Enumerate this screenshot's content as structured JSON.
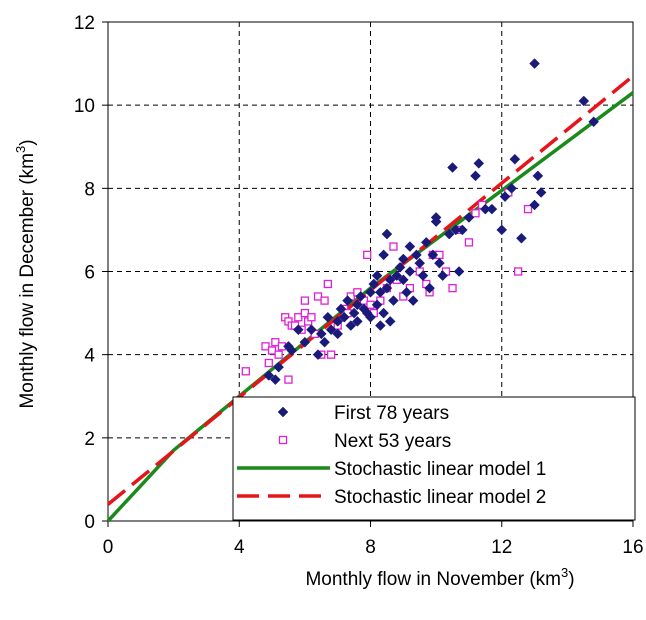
{
  "chart_data": {
    "type": "scatter",
    "xlabel": "Monthly flow in November (km",
    "xlabel_sup": "3",
    "xlabel_end": ")",
    "ylabel": "Monthly flow in December (km",
    "ylabel_sup": "3",
    "ylabel_end": ")",
    "xlim": [
      0,
      16
    ],
    "ylim": [
      0,
      12
    ],
    "xticks": [
      "0",
      "4",
      "8",
      "12",
      "16"
    ],
    "yticks": [
      "0",
      "2",
      "4",
      "6",
      "8",
      "10",
      "12"
    ],
    "grid": true,
    "legend_position": "bottom-right",
    "series": [
      {
        "name": "First 78 years",
        "marker": "diamond",
        "color": "#1a1a7a",
        "points": [
          [
            4.9,
            3.5
          ],
          [
            5.1,
            3.4
          ],
          [
            5.2,
            3.7
          ],
          [
            5.5,
            4.2
          ],
          [
            5.6,
            4.1
          ],
          [
            5.8,
            4.6
          ],
          [
            6.0,
            4.3
          ],
          [
            6.2,
            4.6
          ],
          [
            6.4,
            4.0
          ],
          [
            6.5,
            4.5
          ],
          [
            6.6,
            4.3
          ],
          [
            6.7,
            4.9
          ],
          [
            6.8,
            4.6
          ],
          [
            7.0,
            4.8
          ],
          [
            7.0,
            4.5
          ],
          [
            7.1,
            5.1
          ],
          [
            7.2,
            4.9
          ],
          [
            7.3,
            5.3
          ],
          [
            7.4,
            4.7
          ],
          [
            7.5,
            5.0
          ],
          [
            7.6,
            4.8
          ],
          [
            7.6,
            5.2
          ],
          [
            7.7,
            5.4
          ],
          [
            7.8,
            5.1
          ],
          [
            7.9,
            5.0
          ],
          [
            8.0,
            5.5
          ],
          [
            8.0,
            4.9
          ],
          [
            8.1,
            5.7
          ],
          [
            8.2,
            5.2
          ],
          [
            8.2,
            5.9
          ],
          [
            8.3,
            5.5
          ],
          [
            8.3,
            4.7
          ],
          [
            8.4,
            6.4
          ],
          [
            8.4,
            5.0
          ],
          [
            8.5,
            6.9
          ],
          [
            8.5,
            5.6
          ],
          [
            8.6,
            5.8
          ],
          [
            8.6,
            4.8
          ],
          [
            8.7,
            5.3
          ],
          [
            8.8,
            5.9
          ],
          [
            8.9,
            6.1
          ],
          [
            9.0,
            6.3
          ],
          [
            9.0,
            5.8
          ],
          [
            9.1,
            5.5
          ],
          [
            9.2,
            6.6
          ],
          [
            9.2,
            6.0
          ],
          [
            9.3,
            5.3
          ],
          [
            9.4,
            6.4
          ],
          [
            9.5,
            6.2
          ],
          [
            9.6,
            5.9
          ],
          [
            9.7,
            6.7
          ],
          [
            9.8,
            5.6
          ],
          [
            9.9,
            6.4
          ],
          [
            10.0,
            7.3
          ],
          [
            10.0,
            7.2
          ],
          [
            10.1,
            6.2
          ],
          [
            10.2,
            5.9
          ],
          [
            10.4,
            6.9
          ],
          [
            10.5,
            8.5
          ],
          [
            10.6,
            7.0
          ],
          [
            10.7,
            6.0
          ],
          [
            10.8,
            7.0
          ],
          [
            11.0,
            7.3
          ],
          [
            11.2,
            8.3
          ],
          [
            11.3,
            8.6
          ],
          [
            11.5,
            7.5
          ],
          [
            11.7,
            7.5
          ],
          [
            12.0,
            7.0
          ],
          [
            12.3,
            8.0
          ],
          [
            12.4,
            8.7
          ],
          [
            12.6,
            6.8
          ],
          [
            13.0,
            7.6
          ],
          [
            13.1,
            8.3
          ],
          [
            13.0,
            11.0
          ],
          [
            13.2,
            7.9
          ],
          [
            14.5,
            10.1
          ],
          [
            14.8,
            9.6
          ],
          [
            12.1,
            7.8
          ]
        ]
      },
      {
        "name": "Next 53 years",
        "marker": "square-open",
        "color": "#e01fd8",
        "points": [
          [
            4.2,
            3.6
          ],
          [
            4.8,
            4.2
          ],
          [
            4.9,
            3.8
          ],
          [
            5.0,
            4.1
          ],
          [
            5.1,
            4.3
          ],
          [
            5.2,
            4.0
          ],
          [
            5.3,
            4.2
          ],
          [
            5.4,
            4.9
          ],
          [
            5.5,
            4.8
          ],
          [
            5.5,
            3.4
          ],
          [
            5.6,
            4.7
          ],
          [
            5.8,
            4.9
          ],
          [
            5.9,
            4.6
          ],
          [
            6.0,
            5.0
          ],
          [
            6.0,
            5.3
          ],
          [
            6.1,
            4.8
          ],
          [
            6.2,
            4.9
          ],
          [
            6.3,
            4.5
          ],
          [
            6.4,
            5.4
          ],
          [
            6.5,
            4.0
          ],
          [
            6.6,
            5.3
          ],
          [
            6.8,
            4.0
          ],
          [
            7.0,
            4.7
          ],
          [
            7.2,
            5.1
          ],
          [
            7.4,
            5.4
          ],
          [
            7.6,
            5.5
          ],
          [
            7.8,
            5.3
          ],
          [
            7.9,
            6.4
          ],
          [
            8.0,
            5.2
          ],
          [
            8.1,
            5.0
          ],
          [
            8.3,
            5.3
          ],
          [
            8.5,
            5.6
          ],
          [
            8.7,
            6.6
          ],
          [
            8.8,
            5.8
          ],
          [
            9.0,
            5.4
          ],
          [
            9.2,
            5.6
          ],
          [
            9.5,
            6.0
          ],
          [
            9.7,
            5.7
          ],
          [
            9.8,
            5.5
          ],
          [
            9.9,
            6.4
          ],
          [
            10.1,
            6.4
          ],
          [
            10.3,
            6.0
          ],
          [
            10.5,
            5.6
          ],
          [
            10.7,
            7.0
          ],
          [
            11.0,
            6.7
          ],
          [
            11.2,
            7.4
          ],
          [
            11.4,
            7.6
          ],
          [
            12.2,
            7.9
          ],
          [
            12.5,
            6.0
          ],
          [
            12.8,
            7.5
          ],
          [
            5.7,
            4.7
          ],
          [
            6.7,
            5.7
          ],
          [
            7.3,
            5.0
          ]
        ]
      },
      {
        "name": "Stochastic linear model 1",
        "style": "solid",
        "color": "#1a8a1a",
        "points": [
          [
            0,
            0
          ],
          [
            1,
            0.85
          ],
          [
            2,
            1.7
          ],
          [
            4,
            3.0
          ],
          [
            8,
            5.6
          ],
          [
            12,
            7.95
          ],
          [
            16,
            10.3
          ]
        ]
      },
      {
        "name": "Stochastic linear model 2",
        "style": "dashed",
        "color": "#e8141b",
        "points": [
          [
            0,
            0.4
          ],
          [
            16,
            10.7
          ]
        ]
      }
    ]
  }
}
